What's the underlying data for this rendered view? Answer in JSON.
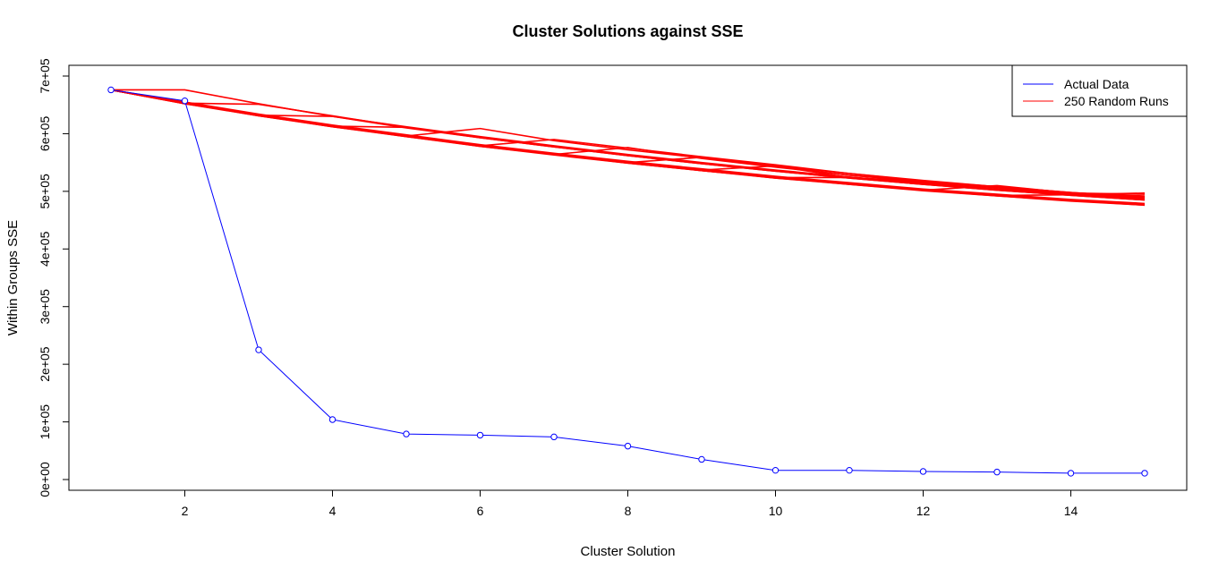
{
  "chart_data": {
    "type": "line",
    "title": "Cluster Solutions against SSE",
    "xlabel": "Cluster Solution",
    "ylabel": "Within Groups SSE",
    "xlim": [
      1,
      15
    ],
    "ylim": [
      0,
      700000
    ],
    "x_ticks": [
      2,
      4,
      6,
      8,
      10,
      12,
      14
    ],
    "y_ticks": [
      0,
      100000,
      200000,
      300000,
      400000,
      500000,
      600000,
      700000
    ],
    "y_tick_labels": [
      "0e+00",
      "1e+05",
      "2e+05",
      "3e+05",
      "4e+05",
      "5e+05",
      "6e+05",
      "7e+05"
    ],
    "grid": false,
    "legend_position": "top-right",
    "x": [
      1,
      2,
      3,
      4,
      5,
      6,
      7,
      8,
      9,
      10,
      11,
      12,
      13,
      14,
      15
    ],
    "series": [
      {
        "name": "Actual Data",
        "color": "#0000ff",
        "markers": "open-circle",
        "values": [
          676000,
          657000,
          225000,
          104000,
          79000,
          77000,
          74000,
          58000,
          35000,
          16000,
          16000,
          14000,
          13000,
          11000,
          11000
        ]
      },
      {
        "name": "250 Random Runs",
        "color": "#ff0000",
        "markers": "none",
        "runs": [
          [
            676000,
            653000,
            632000,
            613000,
            596000,
            579000,
            564000,
            550000,
            537000,
            524000,
            513000,
            502000,
            493000,
            484000,
            477000
          ],
          [
            676000,
            652000,
            631000,
            612000,
            595000,
            578000,
            563000,
            549000,
            536000,
            523000,
            512000,
            501000,
            492000,
            483000,
            476000
          ],
          [
            676000,
            654000,
            633000,
            614000,
            597000,
            580000,
            565000,
            551000,
            538000,
            525000,
            514000,
            503000,
            494000,
            485000,
            478000
          ],
          [
            676000,
            653000,
            631000,
            613000,
            595000,
            579000,
            564000,
            549000,
            536000,
            524000,
            512000,
            502000,
            493000,
            484000,
            476000
          ],
          [
            676000,
            655000,
            634000,
            615000,
            598000,
            581000,
            566000,
            552000,
            539000,
            526000,
            515000,
            504000,
            495000,
            486000,
            479000
          ],
          [
            676000,
            652000,
            632000,
            612000,
            596000,
            578000,
            564000,
            550000,
            537000,
            523000,
            513000,
            502000,
            492000,
            484000,
            477000
          ],
          [
            676000,
            654000,
            632000,
            614000,
            596000,
            580000,
            565000,
            550000,
            537000,
            525000,
            513000,
            503000,
            493000,
            485000,
            477000
          ],
          [
            676000,
            653000,
            633000,
            613000,
            597000,
            579000,
            565000,
            551000,
            536000,
            524000,
            514000,
            502000,
            494000,
            484000,
            478000
          ],
          [
            676000,
            676000,
            652000,
            630000,
            612000,
            595000,
            579000,
            564000,
            550000,
            537000,
            525000,
            514000,
            504000,
            495000,
            488000
          ],
          [
            676000,
            653000,
            651000,
            631000,
            611000,
            594000,
            578000,
            563000,
            549000,
            536000,
            524000,
            513000,
            503000,
            494000,
            486000
          ],
          [
            676000,
            653000,
            632000,
            630000,
            610000,
            593000,
            577000,
            562000,
            548000,
            535000,
            523000,
            512000,
            502000,
            493000,
            485000
          ],
          [
            676000,
            653000,
            632000,
            613000,
            611000,
            593000,
            577000,
            562000,
            548000,
            535000,
            523000,
            512000,
            502000,
            493000,
            485000
          ],
          [
            676000,
            653000,
            632000,
            613000,
            596000,
            609000,
            588000,
            572000,
            558000,
            544000,
            531000,
            519000,
            508000,
            498000,
            490000
          ],
          [
            676000,
            653000,
            632000,
            613000,
            596000,
            579000,
            590000,
            575000,
            560000,
            546000,
            531000,
            518000,
            508000,
            498000,
            490000
          ],
          [
            676000,
            653000,
            632000,
            613000,
            596000,
            579000,
            564000,
            576000,
            557000,
            542000,
            528000,
            517000,
            507000,
            497000,
            489000
          ],
          [
            676000,
            653000,
            632000,
            613000,
            596000,
            579000,
            564000,
            550000,
            559000,
            543000,
            528000,
            517000,
            507000,
            497000,
            489000
          ],
          [
            676000,
            653000,
            632000,
            613000,
            596000,
            579000,
            564000,
            550000,
            537000,
            544000,
            524000,
            516000,
            506000,
            496000,
            490000
          ],
          [
            676000,
            653000,
            632000,
            613000,
            596000,
            579000,
            564000,
            550000,
            537000,
            524000,
            524000,
            517000,
            508000,
            496000,
            492000
          ],
          [
            676000,
            653000,
            632000,
            613000,
            596000,
            579000,
            564000,
            550000,
            537000,
            524000,
            513000,
            502000,
            510000,
            497000,
            495000
          ],
          [
            676000,
            653000,
            632000,
            613000,
            596000,
            579000,
            564000,
            550000,
            537000,
            524000,
            513000,
            502000,
            493000,
            494000,
            497000
          ]
        ]
      }
    ]
  }
}
